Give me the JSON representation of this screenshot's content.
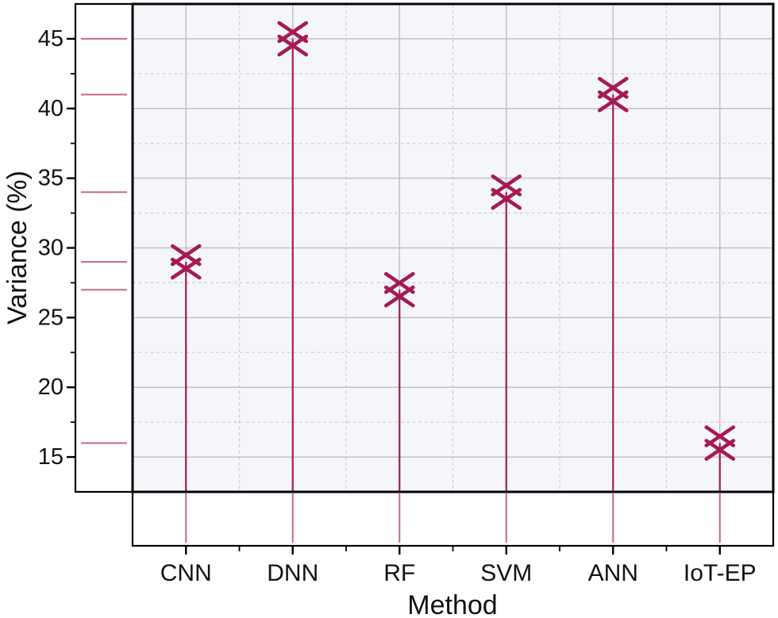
{
  "figure": {
    "background": "#ffffff"
  },
  "chart_data": {
    "type": "stem",
    "title": "",
    "categories": [
      "CNN",
      "DNN",
      "RF",
      "SVM",
      "ANN",
      "IoT-EP"
    ],
    "values": [
      29,
      45,
      27,
      34,
      41,
      16
    ],
    "xlabel": "Method",
    "ylabel": "Variance (%)",
    "ylim": [
      12.5,
      47.5
    ],
    "y_major_ticks": [
      15,
      20,
      25,
      30,
      35,
      40,
      45
    ],
    "y_minor_ticks": [
      17.5,
      22.5,
      27.5,
      32.5,
      37.5,
      42.5
    ],
    "x_minor_ticks_between_categories": true,
    "grid": {
      "major": "solid",
      "minor": "dashed",
      "shown": true
    },
    "legend": null,
    "marker": "double-x-lattice",
    "marginal_rug_left": true,
    "marginal_rug_bottom": true,
    "colors": {
      "accent": "#a51a55",
      "rug": "#c4688c",
      "plot_background": "#f4f6fa",
      "panel_background": "#ffffff",
      "grid_major": "#c0c2c5",
      "grid_minor": "#cfd1d4",
      "axis": "#000000",
      "text": "#111111"
    }
  }
}
